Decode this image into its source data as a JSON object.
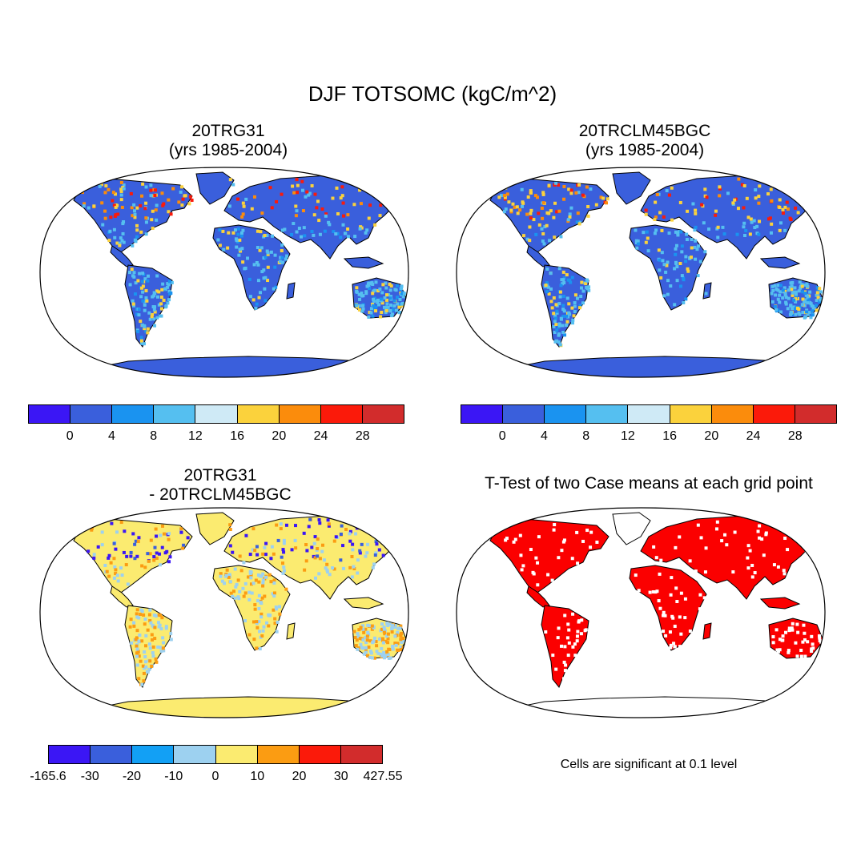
{
  "title": "DJF TOTSOMC (kgC/m^2)",
  "panels": {
    "tl": {
      "title1": "20TRG31",
      "title2": "(yrs 1985-2004)"
    },
    "tr": {
      "title1": "20TRCLM45BGC",
      "title2": "(yrs 1985-2004)"
    },
    "bl": {
      "title1": "20TRG31",
      "title2": "- 20TRCLM45BGC"
    },
    "br": {
      "title1": "T-Test of two Case means at each grid point"
    }
  },
  "colorbars": {
    "abs": {
      "colors": [
        "#3b16f5",
        "#3a5fdc",
        "#1a93f0",
        "#55bff0",
        "#cfeaf6",
        "#fbd23c",
        "#fb8c0c",
        "#fb1a0a",
        "#d22c2c"
      ],
      "labels": [
        "0",
        "4",
        "8",
        "12",
        "16",
        "20",
        "24",
        "28"
      ]
    },
    "diff": {
      "colors": [
        "#3b16f5",
        "#3a5fdc",
        "#12a0f5",
        "#9dd1f0",
        "#fbeb70",
        "#fb9c12",
        "#fb1a0a",
        "#d22c2c"
      ],
      "labels": [
        "-165.6",
        "-30",
        "-20",
        "-10",
        "0",
        "10",
        "20",
        "30",
        "427.55"
      ]
    }
  },
  "note": "Cells are significant at 0.1 level",
  "map_colors": {
    "ocean": "#ffffff",
    "coast": "#000000",
    "significant": "#fb0000"
  }
}
